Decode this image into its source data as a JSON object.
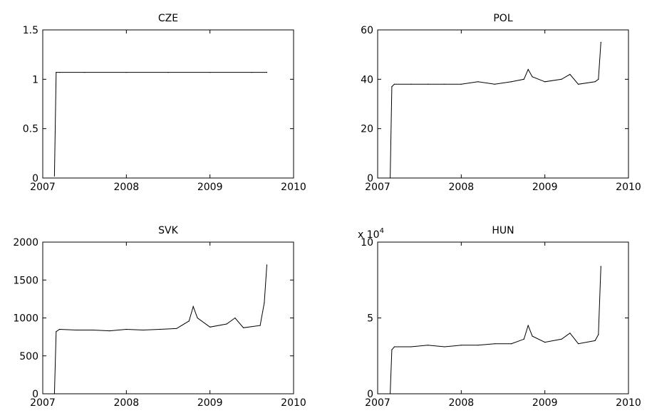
{
  "chart_data": [
    {
      "type": "line",
      "title": "CZE",
      "xlabel": "",
      "ylabel": "",
      "xlim": [
        2007,
        2010
      ],
      "ylim": [
        0,
        1.5
      ],
      "xticks": [
        "2007",
        "2008",
        "2009",
        "2010"
      ],
      "yticks": [
        "0",
        "0.5",
        "1",
        "1.5"
      ],
      "y_multiplier": "",
      "grid": false,
      "series": [
        {
          "x": [
            2007.14,
            2007.16,
            2007.2,
            2007.5,
            2008.0,
            2008.5,
            2009.0,
            2009.5,
            2009.68
          ],
          "y": [
            0.02,
            1.07,
            1.07,
            1.07,
            1.07,
            1.07,
            1.07,
            1.07,
            1.07
          ]
        }
      ]
    },
    {
      "type": "line",
      "title": "POL",
      "xlabel": "",
      "ylabel": "",
      "xlim": [
        2007,
        2010
      ],
      "ylim": [
        0,
        60
      ],
      "xticks": [
        "2007",
        "2008",
        "2009",
        "2010"
      ],
      "yticks": [
        "0",
        "20",
        "40",
        "60"
      ],
      "y_multiplier": "",
      "grid": false,
      "series": [
        {
          "x": [
            2007.15,
            2007.17,
            2007.2,
            2007.4,
            2007.6,
            2007.8,
            2008.0,
            2008.2,
            2008.4,
            2008.6,
            2008.75,
            2008.8,
            2008.85,
            2009.0,
            2009.2,
            2009.3,
            2009.4,
            2009.6,
            2009.64,
            2009.67
          ],
          "y": [
            0,
            37,
            38,
            38,
            38,
            38,
            38,
            39,
            38,
            39,
            40,
            44,
            41,
            39,
            40,
            42,
            38,
            39,
            40,
            55
          ]
        }
      ]
    },
    {
      "type": "line",
      "title": "SVK",
      "xlabel": "",
      "ylabel": "",
      "xlim": [
        2007,
        2010
      ],
      "ylim": [
        0,
        2000
      ],
      "xticks": [
        "2007",
        "2008",
        "2009",
        "2010"
      ],
      "yticks": [
        "0",
        "500",
        "1000",
        "1500",
        "2000"
      ],
      "y_multiplier": "",
      "grid": false,
      "series": [
        {
          "x": [
            2007.14,
            2007.16,
            2007.2,
            2007.4,
            2007.6,
            2007.8,
            2008.0,
            2008.2,
            2008.4,
            2008.6,
            2008.75,
            2008.8,
            2008.85,
            2009.0,
            2009.2,
            2009.3,
            2009.4,
            2009.6,
            2009.65,
            2009.68
          ],
          "y": [
            0,
            820,
            850,
            840,
            840,
            830,
            850,
            840,
            850,
            860,
            960,
            1150,
            1000,
            880,
            920,
            1000,
            870,
            900,
            1200,
            1700
          ]
        }
      ]
    },
    {
      "type": "line",
      "title": "HUN",
      "xlabel": "",
      "ylabel": "",
      "xlim": [
        2007,
        2010
      ],
      "ylim": [
        0,
        10
      ],
      "xticks": [
        "2007",
        "2008",
        "2009",
        "2010"
      ],
      "yticks": [
        "0",
        "5",
        "10"
      ],
      "y_multiplier": "x 10",
      "y_multiplier_exp": "4",
      "grid": false,
      "series": [
        {
          "x": [
            2007.15,
            2007.17,
            2007.2,
            2007.4,
            2007.6,
            2007.8,
            2008.0,
            2008.2,
            2008.4,
            2008.6,
            2008.75,
            2008.8,
            2008.85,
            2009.0,
            2009.2,
            2009.3,
            2009.4,
            2009.6,
            2009.64,
            2009.67
          ],
          "y": [
            0,
            2.9,
            3.1,
            3.1,
            3.2,
            3.1,
            3.2,
            3.2,
            3.3,
            3.3,
            3.6,
            4.5,
            3.8,
            3.4,
            3.6,
            4.0,
            3.3,
            3.5,
            3.9,
            8.4
          ]
        }
      ]
    }
  ]
}
